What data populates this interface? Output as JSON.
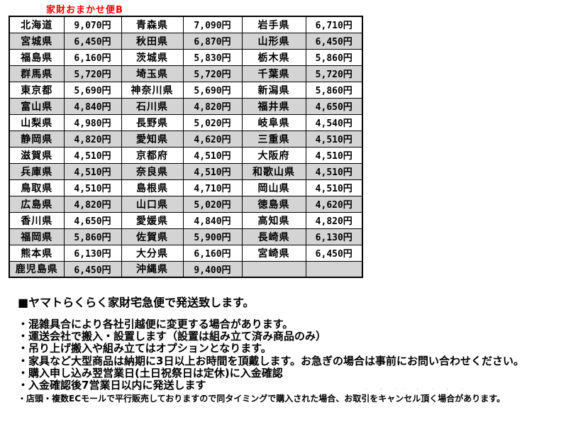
{
  "page": {
    "title_label": "家財おまかせ便B"
  },
  "colors": {
    "title_red": "#FF0000",
    "row_alt_gray": "#D4D4D4",
    "table_border": "#000000",
    "text": "#000000",
    "ghost_gray": "#C9C9C9"
  },
  "table": {
    "description": "shipping-fee-by-prefecture",
    "rows": [
      [
        "北海道",
        "9,070円",
        "青森県",
        "7,090円",
        "岩手県",
        "6,710円"
      ],
      [
        "宮城県",
        "6,450円",
        "秋田県",
        "6,870円",
        "山形県",
        "6,450円"
      ],
      [
        "福島県",
        "6,160円",
        "茨城県",
        "5,830円",
        "栃木県",
        "5,860円"
      ],
      [
        "群馬県",
        "5,720円",
        "埼玉県",
        "5,720円",
        "千葉県",
        "5,720円"
      ],
      [
        "東京都",
        "5,690円",
        "神奈川県",
        "5,690円",
        "新潟県",
        "5,860円"
      ],
      [
        "富山県",
        "4,840円",
        "石川県",
        "4,820円",
        "福井県",
        "4,650円"
      ],
      [
        "山梨県",
        "4,980円",
        "長野県",
        "5,020円",
        "岐阜県",
        "4,540円"
      ],
      [
        "静岡県",
        "4,820円",
        "愛知県",
        "4,620円",
        "三重県",
        "4,510円"
      ],
      [
        "滋賀県",
        "4,510円",
        "京都府",
        "4,510円",
        "大阪府",
        "4,510円"
      ],
      [
        "兵庫県",
        "4,510円",
        "奈良県",
        "4,510円",
        "和歌山県",
        "4,510円"
      ],
      [
        "鳥取県",
        "4,510円",
        "島根県",
        "4,710円",
        "岡山県",
        "4,510円"
      ],
      [
        "広島県",
        "4,820円",
        "山口県",
        "5,020円",
        "徳島県",
        "4,620円"
      ],
      [
        "香川県",
        "4,650円",
        "愛媛県",
        "4,840円",
        "高知県",
        "4,820円"
      ],
      [
        "福岡県",
        "5,860円",
        "佐賀県",
        "5,900円",
        "長崎県",
        "6,130円"
      ],
      [
        "熊本県",
        "6,130円",
        "大分県",
        "6,160円",
        "宮崎県",
        "6,450円"
      ],
      [
        "鹿児島県",
        "6,450円",
        "沖縄県",
        "9,400円",
        "",
        ""
      ]
    ]
  },
  "notes": {
    "heading": "■ヤマトらくらく家財宅急便で発送致します。",
    "bullets": [
      "・混雑具合により各社引越便に変更する場合があります。",
      "・運送会社で搬入・設置します（設置は組み立て済み商品のみ）",
      "・吊り上げ搬入や組み立てはオプションとなります。",
      "・家具など大型商品は納期に3日以上お時間を頂戴します。お急ぎの場合は事前にお問い合わせください。",
      "・購入申し込み翌営業日(土日祝祭日は定休)に入金確認",
      "・入金確認後7営業日以内に発送します"
    ],
    "small_note": "・店頭・複数ECモールで平行販売しておりますので同タイミングで購入された場合、お取引をキャンセル頂く場合があります。",
    "ghost_marks": "- ・ -- ・ - ・ -"
  }
}
